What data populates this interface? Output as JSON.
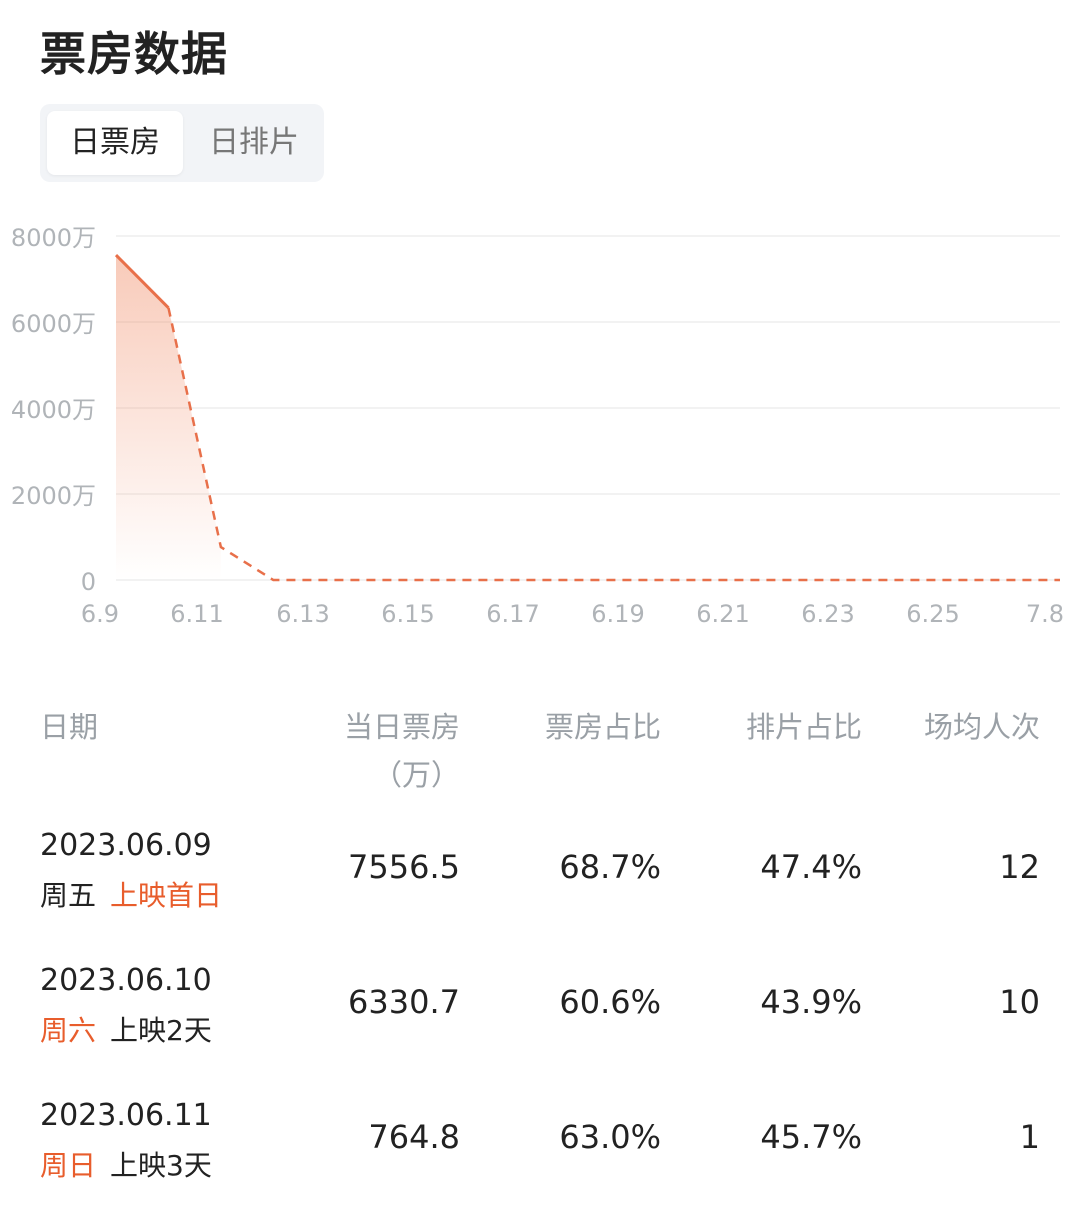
{
  "header": {
    "title": "票房数据"
  },
  "tabs": [
    {
      "label": "日票房",
      "active": true
    },
    {
      "label": "日排片",
      "active": false
    }
  ],
  "chart_data": {
    "type": "line",
    "y_tick_labels": [
      "8000万",
      "6000万",
      "4000万",
      "2000万",
      "0"
    ],
    "y_ticks": [
      8000,
      6000,
      4000,
      2000,
      0
    ],
    "ylim": [
      0,
      8000
    ],
    "x_tick_labels": [
      "6.9",
      "6.11",
      "6.13",
      "6.15",
      "6.17",
      "6.19",
      "6.21",
      "6.23",
      "6.25",
      "7.8"
    ],
    "x": [
      "6.9",
      "6.10",
      "6.11",
      "6.12",
      "6.13",
      "6.14",
      "6.15",
      "6.16",
      "6.17",
      "6.18",
      "6.19",
      "6.20",
      "6.21",
      "6.22",
      "6.23",
      "6.24",
      "6.25",
      "6.26",
      "7.8"
    ],
    "series": [
      {
        "values": [
          7556.5,
          6330.7,
          764.8,
          0,
          0,
          0,
          0,
          0,
          0,
          0,
          0,
          0,
          0,
          0,
          0,
          0,
          0,
          0,
          0
        ]
      }
    ],
    "solid_through_index": 1,
    "line_color": "#e8704a",
    "grid": true
  },
  "table": {
    "headers": {
      "date": "日期",
      "box_office": "当日票房",
      "box_office_unit": "（万）",
      "bo_share": "票房占比",
      "show_share": "排片占比",
      "avg_people": "场均人次"
    },
    "rows": [
      {
        "date": "2023.06.09",
        "weekday": "周五",
        "weekday_hl": false,
        "run": "上映首日",
        "run_hl": true,
        "box_office": "7556.5",
        "bo_share": "68.7%",
        "show_share": "47.4%",
        "avg_people": "12"
      },
      {
        "date": "2023.06.10",
        "weekday": "周六",
        "weekday_hl": true,
        "run": "上映2天",
        "run_hl": false,
        "box_office": "6330.7",
        "bo_share": "60.6%",
        "show_share": "43.9%",
        "avg_people": "10"
      },
      {
        "date": "2023.06.11",
        "weekday": "周日",
        "weekday_hl": true,
        "run": "上映3天",
        "run_hl": false,
        "box_office": "764.8",
        "bo_share": "63.0%",
        "show_share": "45.7%",
        "avg_people": "1"
      }
    ]
  },
  "colors": {
    "accent": "#e85d2c",
    "grid": "#eeeeee",
    "axis_text": "#b0b4b8"
  }
}
